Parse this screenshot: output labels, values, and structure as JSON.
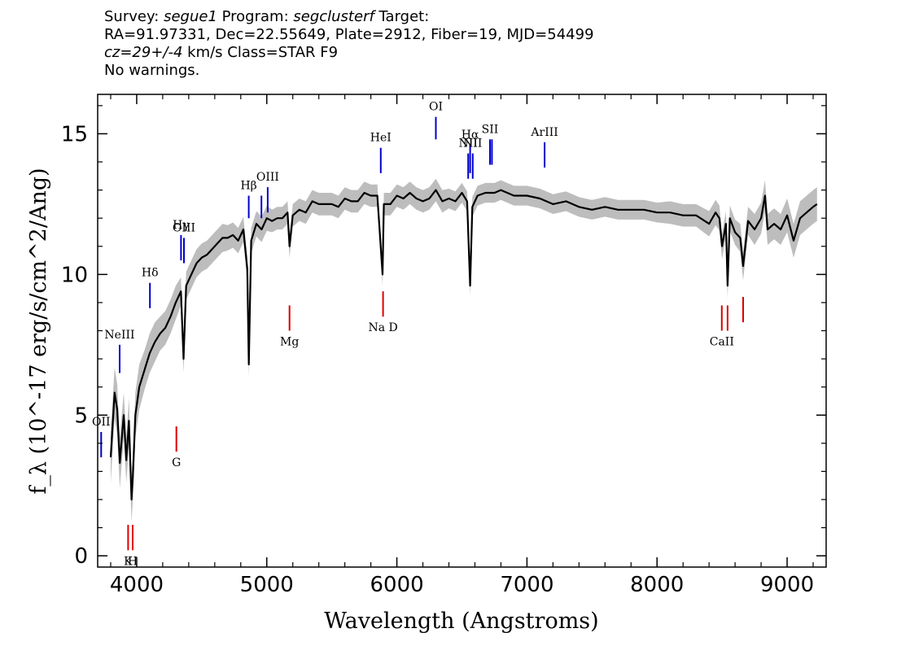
{
  "header": {
    "survey_label": "Survey: ",
    "survey": "segue1",
    "program_label": " Program: ",
    "program": "segclusterf",
    "target_label": " Target:",
    "line2": "RA=91.97331, Dec=22.55649, Plate=2912, Fiber=19, MJD=54499",
    "cz_value": "cz=29+/-4",
    "cz_rest": " km/s Class=STAR F9",
    "warnings": "No warnings."
  },
  "chart_data": {
    "type": "line",
    "title": "",
    "xlabel": "Wavelength (Angstroms)",
    "ylabel": "f_λ (10^-17 erg/s/cm^2/Ang)",
    "xlim": [
      3700,
      9300
    ],
    "ylim": [
      -0.4,
      16.4
    ],
    "x_ticks": [
      4000,
      5000,
      6000,
      7000,
      8000,
      9000
    ],
    "y_ticks": [
      0,
      5,
      10,
      15
    ],
    "series": [
      {
        "color": "#000000",
        "error_color": "#bdbdbd",
        "x": [
          3800,
          3830,
          3850,
          3870,
          3900,
          3920,
          3940,
          3960,
          3970,
          3990,
          4020,
          4060,
          4100,
          4140,
          4180,
          4220,
          4260,
          4300,
          4340,
          4360,
          4380,
          4420,
          4460,
          4500,
          4540,
          4580,
          4620,
          4660,
          4700,
          4740,
          4780,
          4820,
          4850,
          4862,
          4880,
          4920,
          4960,
          5000,
          5040,
          5080,
          5120,
          5160,
          5175,
          5200,
          5250,
          5300,
          5350,
          5400,
          5450,
          5500,
          5550,
          5600,
          5650,
          5700,
          5750,
          5800,
          5850,
          5890,
          5900,
          5950,
          6000,
          6050,
          6100,
          6150,
          6200,
          6250,
          6300,
          6350,
          6400,
          6450,
          6500,
          6540,
          6563,
          6580,
          6620,
          6680,
          6750,
          6800,
          6900,
          7000,
          7100,
          7200,
          7300,
          7400,
          7500,
          7600,
          7700,
          7800,
          7900,
          8000,
          8100,
          8200,
          8300,
          8400,
          8450,
          8480,
          8500,
          8530,
          8542,
          8560,
          8600,
          8640,
          8662,
          8700,
          8750,
          8800,
          8830,
          8850,
          8900,
          8950,
          9000,
          9050,
          9100,
          9150,
          9200,
          9230
        ],
        "y": [
          3.5,
          5.8,
          5.2,
          3.3,
          5.0,
          3.4,
          4.8,
          2.0,
          2.8,
          5.0,
          6.0,
          6.6,
          7.2,
          7.6,
          7.9,
          8.1,
          8.5,
          9.0,
          9.4,
          7.0,
          9.6,
          10.0,
          10.4,
          10.6,
          10.7,
          10.9,
          11.1,
          11.3,
          11.3,
          11.4,
          11.2,
          11.6,
          10.2,
          6.8,
          11.2,
          11.8,
          11.6,
          12.0,
          11.9,
          12.0,
          12.0,
          12.2,
          11.0,
          12.1,
          12.3,
          12.2,
          12.6,
          12.5,
          12.5,
          12.5,
          12.4,
          12.7,
          12.6,
          12.6,
          12.9,
          12.8,
          12.8,
          10.0,
          12.5,
          12.5,
          12.8,
          12.7,
          12.9,
          12.7,
          12.6,
          12.7,
          13.0,
          12.6,
          12.7,
          12.6,
          12.9,
          12.6,
          9.6,
          12.4,
          12.8,
          12.9,
          12.9,
          13.0,
          12.8,
          12.8,
          12.7,
          12.5,
          12.6,
          12.4,
          12.3,
          12.4,
          12.3,
          12.3,
          12.3,
          12.2,
          12.2,
          12.1,
          12.1,
          11.8,
          12.2,
          12.0,
          11.0,
          11.8,
          9.6,
          12.0,
          11.5,
          11.3,
          10.3,
          11.9,
          11.6,
          12.0,
          12.8,
          11.6,
          11.8,
          11.6,
          12.1,
          11.2,
          12.0,
          12.2,
          12.4,
          12.5
        ],
        "err": [
          0.9,
          0.9,
          0.9,
          0.9,
          0.8,
          0.8,
          0.8,
          0.8,
          0.8,
          0.8,
          0.8,
          0.7,
          0.7,
          0.7,
          0.6,
          0.6,
          0.6,
          0.6,
          0.5,
          0.5,
          0.5,
          0.5,
          0.5,
          0.5,
          0.5,
          0.5,
          0.5,
          0.5,
          0.45,
          0.45,
          0.45,
          0.45,
          0.45,
          0.45,
          0.45,
          0.45,
          0.45,
          0.45,
          0.4,
          0.4,
          0.4,
          0.4,
          0.4,
          0.4,
          0.4,
          0.4,
          0.4,
          0.4,
          0.4,
          0.4,
          0.4,
          0.4,
          0.4,
          0.4,
          0.4,
          0.4,
          0.4,
          0.4,
          0.4,
          0.4,
          0.4,
          0.4,
          0.4,
          0.4,
          0.4,
          0.4,
          0.4,
          0.4,
          0.35,
          0.35,
          0.35,
          0.35,
          0.35,
          0.35,
          0.35,
          0.35,
          0.35,
          0.35,
          0.35,
          0.35,
          0.35,
          0.35,
          0.35,
          0.35,
          0.35,
          0.35,
          0.35,
          0.35,
          0.35,
          0.35,
          0.4,
          0.4,
          0.4,
          0.45,
          0.45,
          0.45,
          0.45,
          0.45,
          0.45,
          0.45,
          0.45,
          0.5,
          0.5,
          0.5,
          0.55,
          0.55,
          0.55,
          0.55,
          0.55,
          0.55,
          0.6,
          0.6,
          0.6,
          0.6,
          0.6,
          0.6
        ]
      }
    ],
    "emission_lines": [
      {
        "label": "OII",
        "x": 3727,
        "y_bottom": 3.5,
        "y_top": 4.4
      },
      {
        "label": "NeIII",
        "x": 3869,
        "y_bottom": 6.5,
        "y_top": 7.5
      },
      {
        "label": "Hδ",
        "x": 4102,
        "y_bottom": 8.8,
        "y_top": 9.7
      },
      {
        "label": "Hγ",
        "x": 4341,
        "y_bottom": 10.5,
        "y_top": 11.4
      },
      {
        "label": "OIII",
        "x": 4363,
        "y_bottom": 10.4,
        "y_top": 11.3
      },
      {
        "label": "Hβ",
        "x": 4861,
        "y_bottom": 12.0,
        "y_top": 12.8
      },
      {
        "label": "",
        "x": 4959,
        "y_bottom": 12.0,
        "y_top": 12.8
      },
      {
        "label": "OIII",
        "x": 5007,
        "y_bottom": 12.2,
        "y_top": 13.1
      },
      {
        "label": "HeI",
        "x": 5876,
        "y_bottom": 13.6,
        "y_top": 14.5
      },
      {
        "label": "OI",
        "x": 6300,
        "y_bottom": 14.8,
        "y_top": 15.6
      },
      {
        "label": "NII",
        "x": 6548,
        "y_bottom": 13.4,
        "y_top": 14.3
      },
      {
        "label": "Hα",
        "x": 6563,
        "y_bottom": 13.6,
        "y_top": 14.6
      },
      {
        "label": "NII",
        "x": 6583,
        "y_bottom": 13.4,
        "y_top": 14.3
      },
      {
        "label": "SII",
        "x": 6716,
        "y_bottom": 13.9,
        "y_top": 14.8
      },
      {
        "label": "",
        "x": 6731,
        "y_bottom": 13.9,
        "y_top": 14.8
      },
      {
        "label": "ArIII",
        "x": 7136,
        "y_bottom": 13.8,
        "y_top": 14.7
      }
    ],
    "absorption_lines": [
      {
        "label": "K",
        "x": 3934,
        "y_bottom": 0.2,
        "y_top": 1.1
      },
      {
        "label": "H",
        "x": 3969,
        "y_bottom": 0.2,
        "y_top": 1.1
      },
      {
        "label": "G",
        "x": 4305,
        "y_bottom": 3.7,
        "y_top": 4.6
      },
      {
        "label": "Mg",
        "x": 5175,
        "y_bottom": 8.0,
        "y_top": 8.9
      },
      {
        "label": "Na D",
        "x": 5894,
        "y_bottom": 8.5,
        "y_top": 9.4
      },
      {
        "label": "CaII",
        "x": 8498,
        "y_bottom": 8.0,
        "y_top": 8.9
      },
      {
        "label": "",
        "x": 8542,
        "y_bottom": 8.0,
        "y_top": 8.9
      },
      {
        "label": "",
        "x": 8662,
        "y_bottom": 8.3,
        "y_top": 9.2
      }
    ],
    "emission_color": "#0000cc",
    "absorption_color": "#dd0000"
  }
}
